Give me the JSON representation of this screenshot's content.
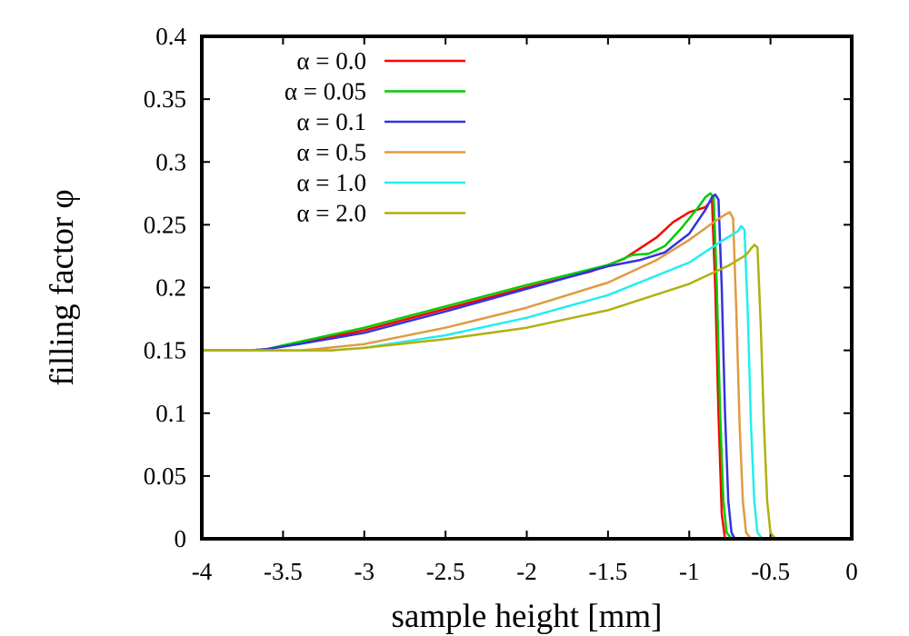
{
  "chart_data": {
    "type": "line",
    "title": "",
    "xlabel": "sample height [mm]",
    "ylabel": "filling factor φ",
    "xlim": [
      -4,
      0
    ],
    "ylim": [
      0,
      0.4
    ],
    "xticks": [
      -4,
      -3.5,
      -3,
      -2.5,
      -2,
      -1.5,
      -1,
      -0.5,
      0
    ],
    "xtick_labels": [
      "-4",
      "-3.5",
      "-3",
      "-2.5",
      "-2",
      "-1.5",
      "-1",
      "-0.5",
      "0"
    ],
    "yticks": [
      0,
      0.05,
      0.1,
      0.15,
      0.2,
      0.25,
      0.3,
      0.35,
      0.4
    ],
    "ytick_labels": [
      "0",
      "0.05",
      "0.1",
      "0.15",
      "0.2",
      "0.25",
      "0.3",
      "0.35",
      "0.4"
    ],
    "grid": false,
    "legend_position": "top-left",
    "series": [
      {
        "name": "α = 0.0",
        "color": "#ff0000",
        "x": [
          -4.0,
          -3.7,
          -3.6,
          -3.5,
          -3.0,
          -2.5,
          -2.0,
          -1.6,
          -1.4,
          -1.2,
          -1.1,
          -1.0,
          -0.95,
          -0.9,
          -0.88,
          -0.86,
          -0.84,
          -0.82,
          -0.8,
          -0.78
        ],
        "y": [
          0.15,
          0.15,
          0.151,
          0.153,
          0.166,
          0.183,
          0.2,
          0.213,
          0.223,
          0.24,
          0.252,
          0.26,
          0.262,
          0.264,
          0.267,
          0.27,
          0.2,
          0.1,
          0.02,
          0.0
        ]
      },
      {
        "name": "α = 0.05",
        "color": "#00cc00",
        "x": [
          -4.0,
          -3.7,
          -3.6,
          -3.5,
          -3.0,
          -2.5,
          -2.0,
          -1.5,
          -1.35,
          -1.25,
          -1.15,
          -1.05,
          -0.95,
          -0.9,
          -0.87,
          -0.85,
          -0.83,
          -0.81,
          -0.79,
          -0.77,
          -0.74
        ],
        "y": [
          0.15,
          0.15,
          0.151,
          0.154,
          0.168,
          0.185,
          0.202,
          0.218,
          0.226,
          0.227,
          0.233,
          0.247,
          0.263,
          0.272,
          0.275,
          0.272,
          0.2,
          0.1,
          0.03,
          0.005,
          0.0
        ]
      },
      {
        "name": "α = 0.1",
        "color": "#3333dd",
        "x": [
          -4.0,
          -3.7,
          -3.6,
          -3.4,
          -3.0,
          -2.5,
          -2.0,
          -1.5,
          -1.3,
          -1.15,
          -1.0,
          -0.9,
          -0.86,
          -0.84,
          -0.82,
          -0.8,
          -0.78,
          -0.76,
          -0.74,
          -0.72
        ],
        "y": [
          0.15,
          0.15,
          0.151,
          0.155,
          0.164,
          0.181,
          0.199,
          0.217,
          0.222,
          0.228,
          0.243,
          0.262,
          0.272,
          0.274,
          0.27,
          0.2,
          0.1,
          0.03,
          0.005,
          0.0
        ]
      },
      {
        "name": "α = 0.5",
        "color": "#e09a40",
        "x": [
          -4.0,
          -3.4,
          -3.3,
          -3.0,
          -2.5,
          -2.0,
          -1.5,
          -1.2,
          -1.0,
          -0.85,
          -0.78,
          -0.75,
          -0.73,
          -0.71,
          -0.69,
          -0.67,
          -0.65,
          -0.62
        ],
        "y": [
          0.15,
          0.15,
          0.151,
          0.155,
          0.168,
          0.184,
          0.204,
          0.222,
          0.238,
          0.252,
          0.258,
          0.26,
          0.255,
          0.18,
          0.09,
          0.03,
          0.005,
          0.0
        ]
      },
      {
        "name": "α = 1.0",
        "color": "#22eeee",
        "x": [
          -4.0,
          -3.2,
          -3.1,
          -3.0,
          -2.5,
          -2.0,
          -1.5,
          -1.0,
          -0.8,
          -0.7,
          -0.68,
          -0.66,
          -0.64,
          -0.62,
          -0.6,
          -0.58,
          -0.55
        ],
        "y": [
          0.15,
          0.15,
          0.151,
          0.152,
          0.162,
          0.176,
          0.194,
          0.22,
          0.237,
          0.245,
          0.249,
          0.246,
          0.18,
          0.09,
          0.03,
          0.005,
          0.0
        ]
      },
      {
        "name": "α = 2.0",
        "color": "#b0b010",
        "x": [
          -4.0,
          -3.2,
          -3.1,
          -3.0,
          -2.5,
          -2.0,
          -1.5,
          -1.0,
          -0.75,
          -0.65,
          -0.62,
          -0.6,
          -0.58,
          -0.56,
          -0.54,
          -0.52,
          -0.5,
          -0.47
        ],
        "y": [
          0.15,
          0.15,
          0.151,
          0.152,
          0.159,
          0.168,
          0.182,
          0.203,
          0.218,
          0.226,
          0.231,
          0.234,
          0.232,
          0.17,
          0.09,
          0.03,
          0.005,
          0.0
        ]
      }
    ]
  }
}
